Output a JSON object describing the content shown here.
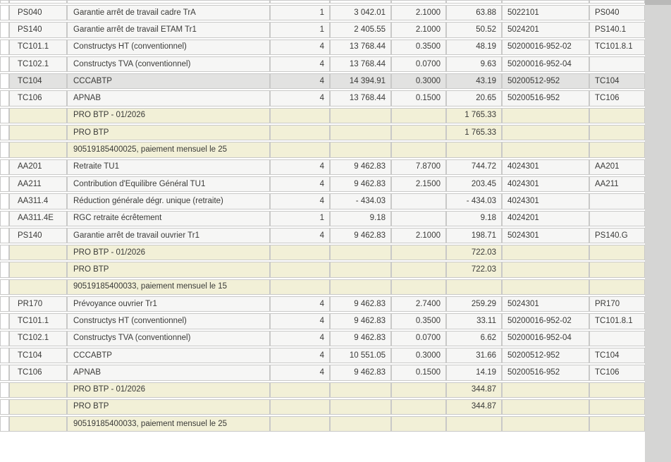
{
  "colors": {
    "row_bg": "#f6f6f5",
    "row_selected": "#e2e2e1",
    "row_group_yellow": "#f2f0d7",
    "row_empty": "#ffffff",
    "cell_border": "#c9c9c8",
    "text": "#3a3a38",
    "right_strip": "#d5d5d4",
    "right_strip_dark": "#b9b9b8"
  },
  "table": {
    "rows": [
      {
        "type": "empty",
        "code": "",
        "label": "",
        "qty": "",
        "base": "",
        "rate": "",
        "amount": "",
        "account": "",
        "ref": ""
      },
      {
        "type": "normal",
        "code": "PS040",
        "label": "Garantie arrêt de travail cadre TrA",
        "qty": "1",
        "base": "3 042.01",
        "rate": "2.1000",
        "amount": "63.88",
        "account": "5022101",
        "ref": "PS040"
      },
      {
        "type": "normal",
        "code": "PS140",
        "label": "Garantie arrêt de travail ETAM Tr1",
        "qty": "1",
        "base": "2 405.55",
        "rate": "2.1000",
        "amount": "50.52",
        "account": "5024201",
        "ref": "PS140.1"
      },
      {
        "type": "normal",
        "code": "TC101.1",
        "label": "Constructys HT (conventionnel)",
        "qty": "4",
        "base": "13 768.44",
        "rate": "0.3500",
        "amount": "48.19",
        "account": "50200016-952-02",
        "ref": "TC101.8.1"
      },
      {
        "type": "normal",
        "code": "TC102.1",
        "label": "Constructys TVA (conventionnel)",
        "qty": "4",
        "base": "13 768.44",
        "rate": "0.0700",
        "amount": "9.63",
        "account": "50200016-952-04",
        "ref": ""
      },
      {
        "type": "selected",
        "code": "TC104",
        "label": "CCCABTP",
        "qty": "4",
        "base": "14 394.91",
        "rate": "0.3000",
        "amount": "43.19",
        "account": "50200512-952",
        "ref": "TC104"
      },
      {
        "type": "normal",
        "code": "TC106",
        "label": "APNAB",
        "qty": "4",
        "base": "13 768.44",
        "rate": "0.1500",
        "amount": "20.65",
        "account": "50200516-952",
        "ref": "TC106"
      },
      {
        "type": "group",
        "code": "",
        "label": "PRO BTP - 01/2026",
        "qty": "",
        "base": "",
        "rate": "",
        "amount": "1 765.33",
        "account": "",
        "ref": ""
      },
      {
        "type": "group",
        "code": "",
        "label": "PRO BTP",
        "qty": "",
        "base": "",
        "rate": "",
        "amount": "1 765.33",
        "account": "",
        "ref": ""
      },
      {
        "type": "group",
        "code": "",
        "label": "90519185400025, paiement mensuel le 25",
        "qty": "",
        "base": "",
        "rate": "",
        "amount": "",
        "account": "",
        "ref": ""
      },
      {
        "type": "normal",
        "code": "AA201",
        "label": "Retraite TU1",
        "qty": "4",
        "base": "9 462.83",
        "rate": "7.8700",
        "amount": "744.72",
        "account": "4024301",
        "ref": "AA201"
      },
      {
        "type": "normal",
        "code": "AA211",
        "label": "Contribution d'Equilibre Général TU1",
        "qty": "4",
        "base": "9 462.83",
        "rate": "2.1500",
        "amount": "203.45",
        "account": "4024301",
        "ref": "AA211"
      },
      {
        "type": "normal",
        "code": "AA311.4",
        "label": "Réduction générale dégr. unique (retraite)",
        "qty": "4",
        "base": "- 434.03",
        "rate": "",
        "amount": "- 434.03",
        "account": "4024301",
        "ref": ""
      },
      {
        "type": "normal",
        "code": "AA311.4E",
        "label": "RGC retraite écrêtement",
        "qty": "1",
        "base": "9.18",
        "rate": "",
        "amount": "9.18",
        "account": "4024201",
        "ref": ""
      },
      {
        "type": "normal",
        "code": "PS140",
        "label": "Garantie arrêt de travail ouvrier Tr1",
        "qty": "4",
        "base": "9 462.83",
        "rate": "2.1000",
        "amount": "198.71",
        "account": "5024301",
        "ref": "PS140.G"
      },
      {
        "type": "group",
        "code": "",
        "label": "PRO BTP - 01/2026",
        "qty": "",
        "base": "",
        "rate": "",
        "amount": "722.03",
        "account": "",
        "ref": ""
      },
      {
        "type": "group",
        "code": "",
        "label": "PRO BTP",
        "qty": "",
        "base": "",
        "rate": "",
        "amount": "722.03",
        "account": "",
        "ref": ""
      },
      {
        "type": "group",
        "code": "",
        "label": "90519185400033, paiement mensuel le 15",
        "qty": "",
        "base": "",
        "rate": "",
        "amount": "",
        "account": "",
        "ref": ""
      },
      {
        "type": "normal",
        "code": "PR170",
        "label": "Prévoyance ouvrier Tr1",
        "qty": "4",
        "base": "9 462.83",
        "rate": "2.7400",
        "amount": "259.29",
        "account": "5024301",
        "ref": "PR170"
      },
      {
        "type": "normal",
        "code": "TC101.1",
        "label": "Constructys HT (conventionnel)",
        "qty": "4",
        "base": "9 462.83",
        "rate": "0.3500",
        "amount": "33.11",
        "account": "50200016-952-02",
        "ref": "TC101.8.1"
      },
      {
        "type": "normal",
        "code": "TC102.1",
        "label": "Constructys TVA (conventionnel)",
        "qty": "4",
        "base": "9 462.83",
        "rate": "0.0700",
        "amount": "6.62",
        "account": "50200016-952-04",
        "ref": ""
      },
      {
        "type": "normal",
        "code": "TC104",
        "label": "CCCABTP",
        "qty": "4",
        "base": "10 551.05",
        "rate": "0.3000",
        "amount": "31.66",
        "account": "50200512-952",
        "ref": "TC104"
      },
      {
        "type": "normal",
        "code": "TC106",
        "label": "APNAB",
        "qty": "4",
        "base": "9 462.83",
        "rate": "0.1500",
        "amount": "14.19",
        "account": "50200516-952",
        "ref": "TC106"
      },
      {
        "type": "group",
        "code": "",
        "label": "PRO BTP - 01/2026",
        "qty": "",
        "base": "",
        "rate": "",
        "amount": "344.87",
        "account": "",
        "ref": ""
      },
      {
        "type": "group",
        "code": "",
        "label": "PRO BTP",
        "qty": "",
        "base": "",
        "rate": "",
        "amount": "344.87",
        "account": "",
        "ref": ""
      },
      {
        "type": "group",
        "code": "",
        "label": "90519185400033, paiement mensuel le 25",
        "qty": "",
        "base": "",
        "rate": "",
        "amount": "",
        "account": "",
        "ref": ""
      }
    ]
  }
}
